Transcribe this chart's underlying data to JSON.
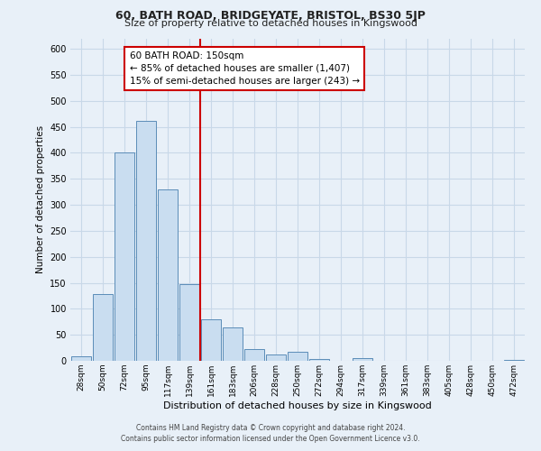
{
  "title": "60, BATH ROAD, BRIDGEYATE, BRISTOL, BS30 5JP",
  "subtitle": "Size of property relative to detached houses in Kingswood",
  "xlabel": "Distribution of detached houses by size in Kingswood",
  "ylabel": "Number of detached properties",
  "bar_labels": [
    "28sqm",
    "50sqm",
    "72sqm",
    "95sqm",
    "117sqm",
    "139sqm",
    "161sqm",
    "183sqm",
    "206sqm",
    "228sqm",
    "250sqm",
    "272sqm",
    "294sqm",
    "317sqm",
    "339sqm",
    "361sqm",
    "383sqm",
    "405sqm",
    "428sqm",
    "450sqm",
    "472sqm"
  ],
  "bar_values": [
    8,
    128,
    400,
    462,
    330,
    147,
    80,
    65,
    22,
    12,
    17,
    4,
    0,
    5,
    0,
    0,
    0,
    0,
    0,
    0,
    2
  ],
  "bar_color": "#c9ddf0",
  "bar_edge_color": "#5b8db8",
  "grid_color": "#c8d8e8",
  "background_color": "#e8f0f8",
  "plot_bg_color": "#e8f0f8",
  "vline_x": 5.5,
  "vline_color": "#cc0000",
  "annotation_title": "60 BATH ROAD: 150sqm",
  "annotation_line1": "← 85% of detached houses are smaller (1,407)",
  "annotation_line2": "15% of semi-detached houses are larger (243) →",
  "ylim": [
    0,
    620
  ],
  "yticks": [
    0,
    50,
    100,
    150,
    200,
    250,
    300,
    350,
    400,
    450,
    500,
    550,
    600
  ],
  "footer_line1": "Contains HM Land Registry data © Crown copyright and database right 2024.",
  "footer_line2": "Contains public sector information licensed under the Open Government Licence v3.0."
}
